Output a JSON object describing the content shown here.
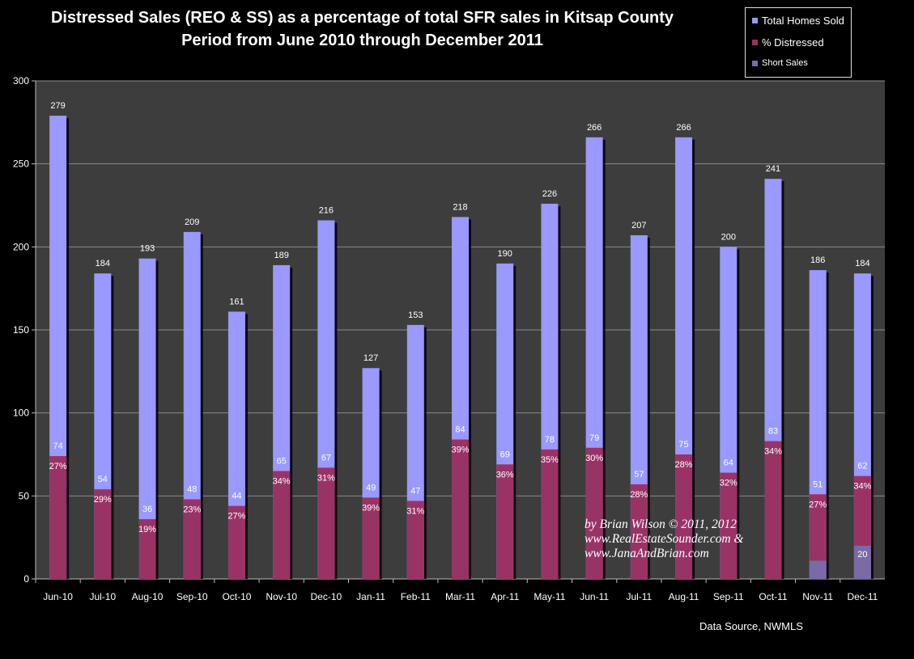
{
  "chart_data": {
    "type": "bar",
    "title": "Distressed Sales (REO & SS) as a percentage of total SFR sales in Kitsap County",
    "subtitle": "Period from June 2010 through December 2011",
    "ylim": [
      0,
      300
    ],
    "yticks": [
      "0",
      "50",
      "100",
      "150",
      "200",
      "250",
      "300"
    ],
    "grid": true,
    "legend_position": "top-right",
    "categories": [
      "Jun-10",
      "Jul-10",
      "Aug-10",
      "Sep-10",
      "Oct-10",
      "Nov-10",
      "Dec-10",
      "Jan-11",
      "Feb-11",
      "Mar-11",
      "Apr-11",
      "May-11",
      "Jun-11",
      "Jul-11",
      "Aug-11",
      "Sep-11",
      "Oct-11",
      "Nov-11",
      "Dec-11"
    ],
    "series": [
      {
        "name": "Total Homes Sold",
        "color": "#9999ff",
        "values": [
          279,
          184,
          193,
          209,
          161,
          189,
          216,
          127,
          153,
          218,
          190,
          226,
          266,
          207,
          266,
          200,
          241,
          186,
          184
        ]
      },
      {
        "name": "% Distressed",
        "color": "#993366",
        "values": [
          74,
          54,
          36,
          48,
          44,
          65,
          67,
          49,
          47,
          84,
          69,
          78,
          79,
          57,
          75,
          64,
          83,
          51,
          62
        ],
        "percent_labels": [
          "27%",
          "29%",
          "19%",
          "23%",
          "27%",
          "34%",
          "31%",
          "39%",
          "31%",
          "39%",
          "36%",
          "35%",
          "30%",
          "28%",
          "28%",
          "32%",
          "34%",
          "27%",
          "34%"
        ]
      },
      {
        "name": "Short Sales",
        "color": "#7a6aa8",
        "values": [
          null,
          null,
          null,
          null,
          null,
          null,
          null,
          null,
          null,
          null,
          null,
          null,
          null,
          null,
          null,
          null,
          null,
          11,
          20
        ],
        "labels": [
          "",
          "",
          "",
          "",
          "",
          "",
          "",
          "",
          "",
          "",
          "",
          "",
          "",
          "",
          "",
          "",
          "",
          "",
          "20"
        ]
      }
    ],
    "source": "Data Source, NWMLS",
    "watermark": [
      "by Brian Wilson © 2011, 2012",
      "www.RealEstateSounder.com &",
      "www.JanaAndBrian.com"
    ]
  }
}
